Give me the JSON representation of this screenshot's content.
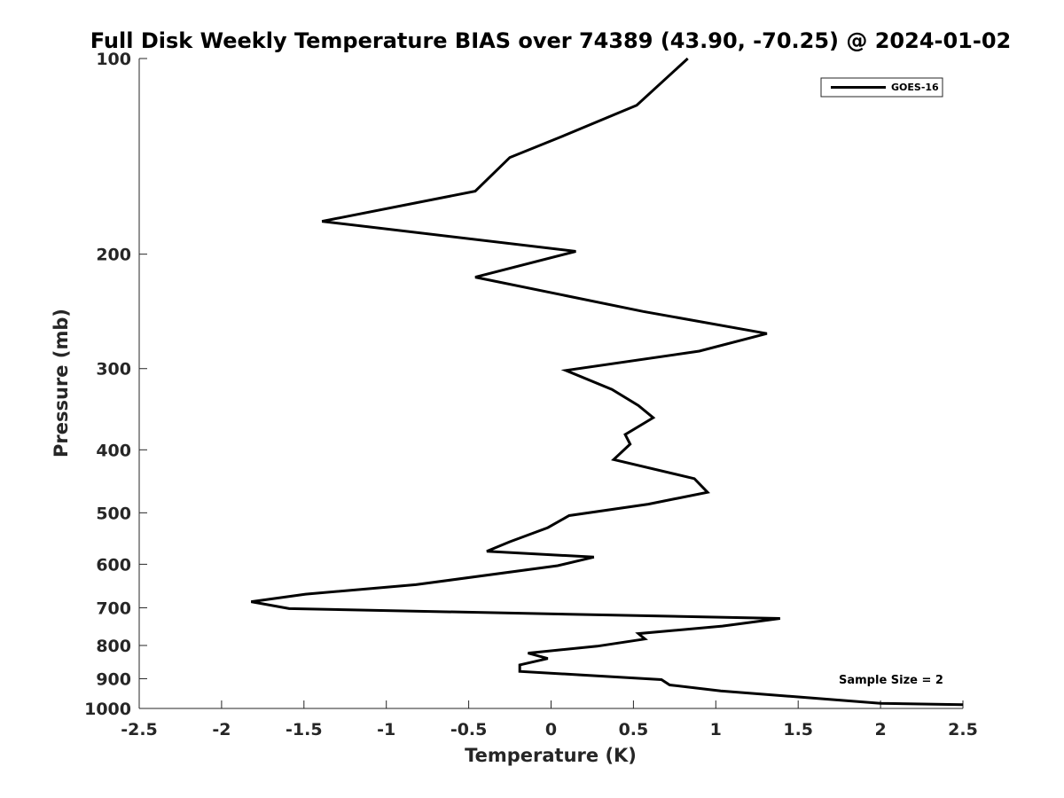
{
  "chart_data": {
    "type": "line",
    "title": "Full Disk Weekly Temperature BIAS over 74389 (43.90, -70.25) @ 2024-01-02",
    "xlabel": "Temperature (K)",
    "ylabel": "Pressure (mb)",
    "xlim": [
      -2.5,
      2.5
    ],
    "ylim": [
      1000,
      100
    ],
    "yscale": "log",
    "y_reversed": true,
    "grid": false,
    "legend_position": "top-right",
    "x_ticks": [
      -2.5,
      -2,
      -1.5,
      -1,
      -0.5,
      0,
      0.5,
      1,
      1.5,
      2,
      2.5
    ],
    "x_tick_labels": [
      "-2.5",
      "-2",
      "-1.5",
      "-1",
      "-0.5",
      "0",
      "0.5",
      "1",
      "1.5",
      "2",
      "2.5"
    ],
    "y_ticks": [
      100,
      200,
      300,
      400,
      500,
      600,
      700,
      800,
      900,
      1000
    ],
    "y_tick_labels": [
      "100",
      "200",
      "300",
      "400",
      "500",
      "600",
      "700",
      "800",
      "900",
      "1000"
    ],
    "annotation": "Sample Size = 2",
    "series": [
      {
        "name": "GOES-16",
        "color": "#000000",
        "points": [
          [
            0.83,
            100
          ],
          [
            0.52,
            118
          ],
          [
            0.06,
            132
          ],
          [
            -0.25,
            142
          ],
          [
            -0.46,
            160
          ],
          [
            -1.39,
            178
          ],
          [
            0.15,
            198
          ],
          [
            -0.46,
            217
          ],
          [
            0.56,
            245
          ],
          [
            1.31,
            265
          ],
          [
            0.9,
            282
          ],
          [
            0.09,
            302
          ],
          [
            0.37,
            323
          ],
          [
            0.53,
            342
          ],
          [
            0.62,
            357
          ],
          [
            0.45,
            379
          ],
          [
            0.48,
            392
          ],
          [
            0.38,
            414
          ],
          [
            0.87,
            443
          ],
          [
            0.95,
            465
          ],
          [
            0.59,
            485
          ],
          [
            0.11,
            505
          ],
          [
            -0.02,
            527
          ],
          [
            -0.25,
            554
          ],
          [
            -0.39,
            573
          ],
          [
            0.26,
            585
          ],
          [
            0.04,
            603
          ],
          [
            -0.82,
            645
          ],
          [
            -1.49,
            667
          ],
          [
            -1.82,
            685
          ],
          [
            -1.59,
            702
          ],
          [
            1.39,
            727
          ],
          [
            1.04,
            747
          ],
          [
            0.53,
            767
          ],
          [
            0.57,
            782
          ],
          [
            0.28,
            802
          ],
          [
            -0.14,
            822
          ],
          [
            -0.02,
            838
          ],
          [
            -0.19,
            857
          ],
          [
            -0.19,
            877
          ],
          [
            0.67,
            903
          ],
          [
            0.72,
            920
          ],
          [
            1.03,
            940
          ],
          [
            1.5,
            960
          ],
          [
            2.0,
            982
          ],
          [
            2.5,
            987
          ]
        ]
      }
    ]
  }
}
